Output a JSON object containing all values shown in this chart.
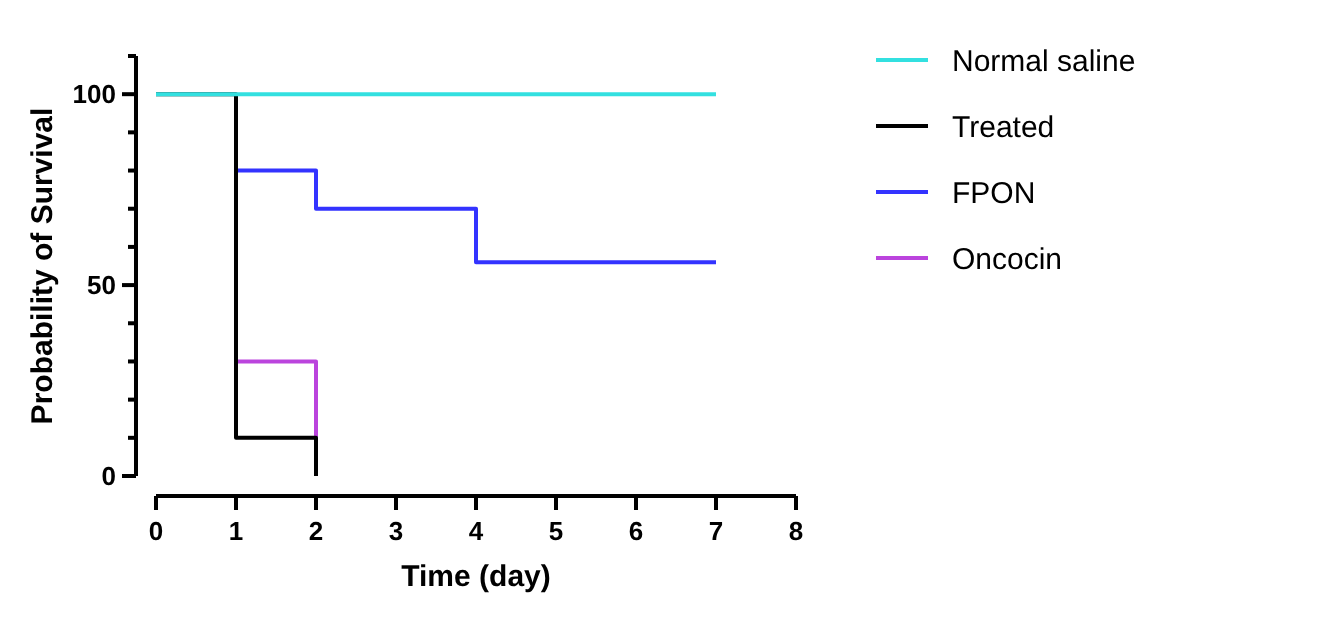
{
  "chart_data": {
    "type": "step",
    "xlabel": "Time (day)",
    "ylabel": "Probability of Survival",
    "xlim": [
      0,
      8
    ],
    "xticks": [
      0,
      1,
      2,
      3,
      4,
      5,
      6,
      7,
      8
    ],
    "ylim": [
      0,
      110
    ],
    "yticks": [
      0,
      {
        "value": 10,
        "label": null
      },
      {
        "value": 20,
        "label": null
      },
      {
        "value": 30,
        "label": null
      },
      {
        "value": 40,
        "label": null
      },
      50,
      {
        "value": 60,
        "label": null
      },
      {
        "value": 70,
        "label": null
      },
      {
        "value": 80,
        "label": null
      },
      {
        "value": 90,
        "label": null
      },
      100,
      {
        "value": 110,
        "label": null
      }
    ],
    "legend": "right",
    "series": [
      {
        "name": "Normal saline",
        "color": "#33e0e0",
        "x": [
          0,
          1,
          2,
          3,
          4,
          5,
          6,
          7
        ],
        "values": [
          100,
          100,
          100,
          100,
          100,
          100,
          100,
          100
        ]
      },
      {
        "name": "Treated",
        "color": "#000000",
        "x": [
          0,
          1,
          2
        ],
        "values": [
          100,
          10,
          0
        ]
      },
      {
        "name": "FPON",
        "color": "#3333ff",
        "x": [
          1,
          2,
          4,
          7
        ],
        "values": [
          80,
          70,
          56,
          56
        ]
      },
      {
        "name": "Oncocin",
        "color": "#bb44dd",
        "x": [
          1,
          2
        ],
        "values": [
          30,
          10
        ]
      }
    ]
  }
}
